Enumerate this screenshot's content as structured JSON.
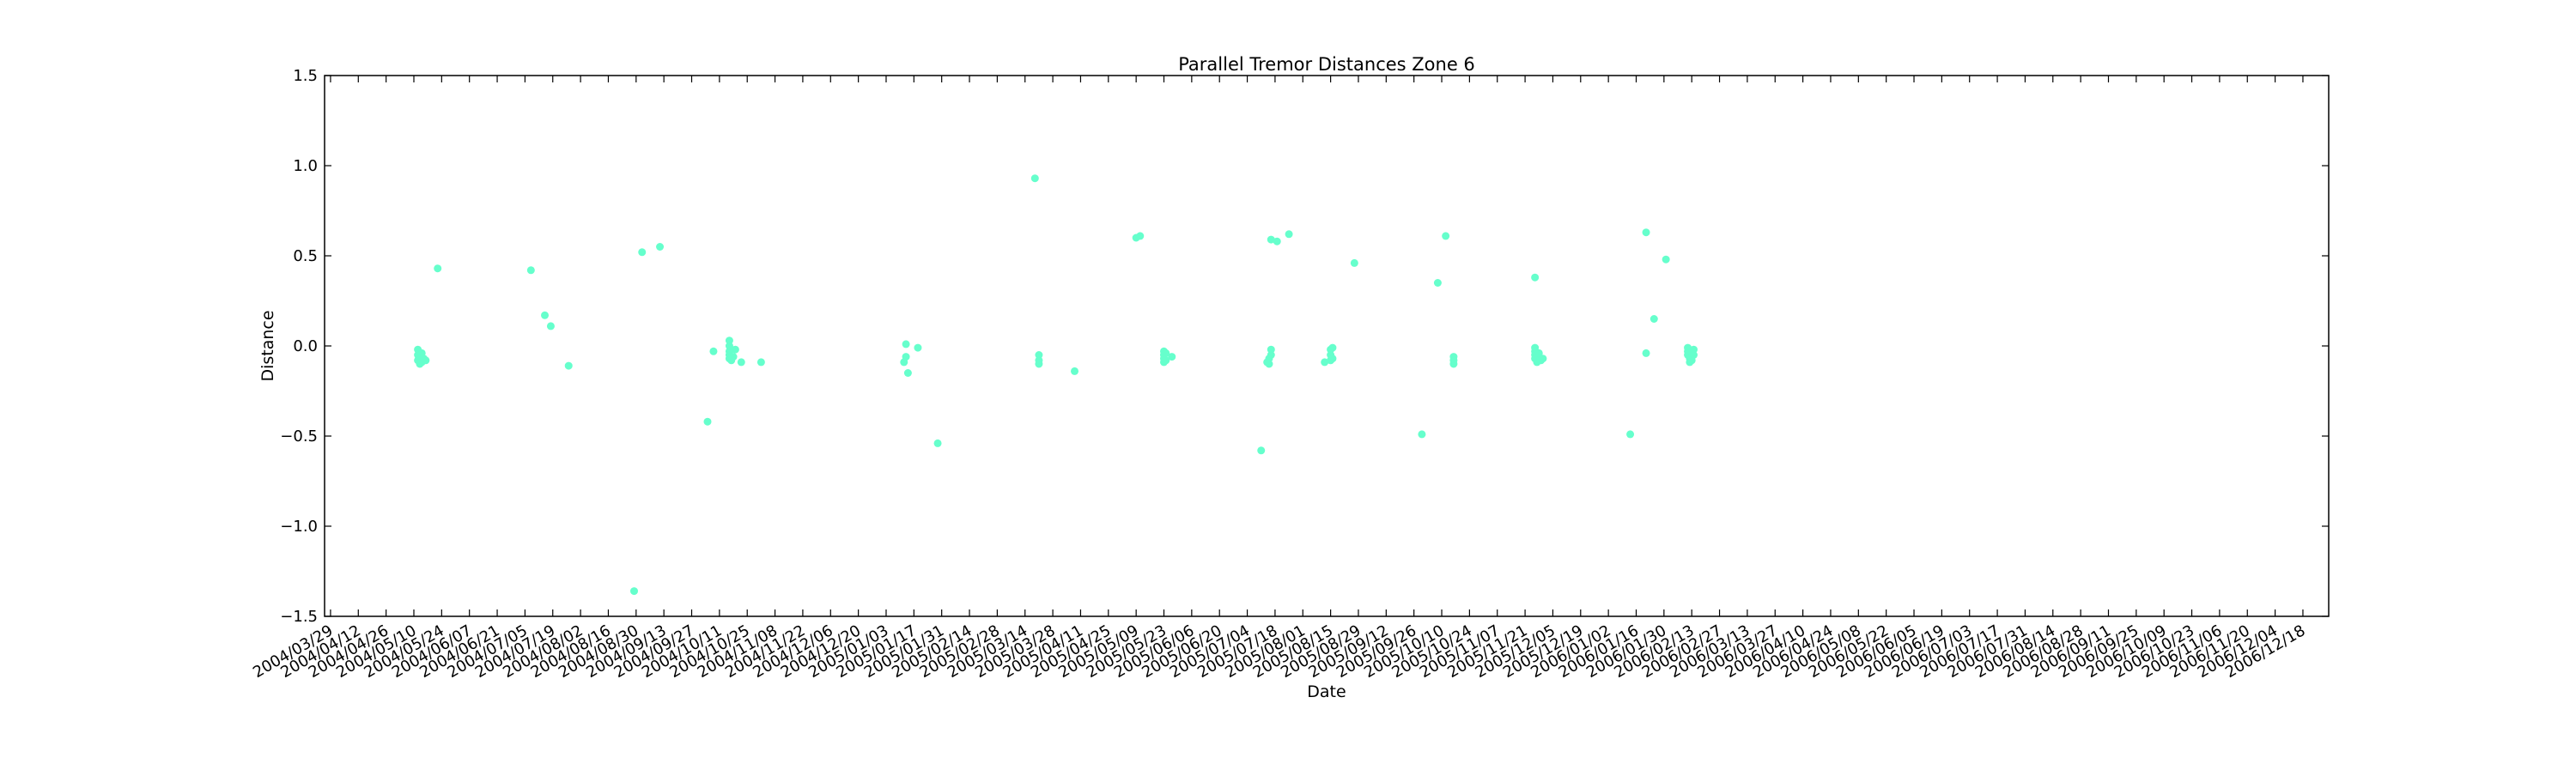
{
  "chart_data": {
    "type": "scatter",
    "title": "Parallel Tremor Distances Zone 6",
    "xlabel": "Date",
    "ylabel": "Distance",
    "xlim": [
      "2004-03-26",
      "2006-12-31"
    ],
    "ylim": [
      -1.5,
      1.5
    ],
    "grid": false,
    "legend": "none",
    "marker_color": "#66ffcc",
    "x_tick_labels": [
      "2004/03/29",
      "2004/04/12",
      "2004/04/26",
      "2004/05/10",
      "2004/05/24",
      "2004/06/07",
      "2004/06/21",
      "2004/07/05",
      "2004/07/19",
      "2004/08/02",
      "2004/08/16",
      "2004/08/30",
      "2004/09/13",
      "2004/09/27",
      "2004/10/11",
      "2004/10/25",
      "2004/11/08",
      "2004/11/22",
      "2004/12/06",
      "2004/12/20",
      "2005/01/03",
      "2005/01/17",
      "2005/01/31",
      "2005/02/14",
      "2005/02/28",
      "2005/03/14",
      "2005/03/28",
      "2005/04/11",
      "2005/04/25",
      "2005/05/09",
      "2005/05/23",
      "2005/06/06",
      "2005/06/20",
      "2005/07/04",
      "2005/07/18",
      "2005/08/01",
      "2005/08/15",
      "2005/08/29",
      "2005/09/12",
      "2005/09/26",
      "2005/10/10",
      "2005/10/24",
      "2005/11/07",
      "2005/11/21",
      "2005/12/05",
      "2005/12/19",
      "2006/01/02",
      "2006/01/16",
      "2006/01/30",
      "2006/02/13",
      "2006/02/27",
      "2006/03/13",
      "2006/03/27",
      "2006/04/10",
      "2006/04/24",
      "2006/05/08",
      "2006/05/22",
      "2006/06/05",
      "2006/06/19",
      "2006/07/03",
      "2006/07/17",
      "2006/07/31",
      "2006/08/14",
      "2006/08/28",
      "2006/09/11",
      "2006/09/25",
      "2006/10/09",
      "2006/10/23",
      "2006/11/06",
      "2006/11/20",
      "2006/12/04",
      "2006/12/18"
    ],
    "y_tick_labels": [
      "1.5",
      "1.0",
      "0.5",
      "0.0",
      "−0.5",
      "−1.0",
      "−1.5"
    ],
    "y_ticks": [
      1.5,
      1.0,
      0.5,
      0.0,
      -0.5,
      -1.0,
      -1.5
    ],
    "series": [
      {
        "points": [
          {
            "x": "2004-05-12",
            "y": -0.02
          },
          {
            "x": "2004-05-12",
            "y": -0.05
          },
          {
            "x": "2004-05-12",
            "y": -0.08
          },
          {
            "x": "2004-05-13",
            "y": -0.1
          },
          {
            "x": "2004-05-13",
            "y": -0.06
          },
          {
            "x": "2004-05-14",
            "y": -0.09
          },
          {
            "x": "2004-05-14",
            "y": -0.04
          },
          {
            "x": "2004-05-15",
            "y": -0.07
          },
          {
            "x": "2004-05-16",
            "y": -0.08
          },
          {
            "x": "2004-05-22",
            "y": 0.43
          },
          {
            "x": "2004-07-08",
            "y": 0.42
          },
          {
            "x": "2004-07-15",
            "y": 0.17
          },
          {
            "x": "2004-07-18",
            "y": 0.11
          },
          {
            "x": "2004-07-27",
            "y": -0.11
          },
          {
            "x": "2004-08-29",
            "y": -1.36
          },
          {
            "x": "2004-09-02",
            "y": 0.52
          },
          {
            "x": "2004-09-11",
            "y": 0.55
          },
          {
            "x": "2004-10-05",
            "y": -0.42
          },
          {
            "x": "2004-10-08",
            "y": -0.03
          },
          {
            "x": "2004-10-16",
            "y": 0.03
          },
          {
            "x": "2004-10-16",
            "y": 0.0
          },
          {
            "x": "2004-10-16",
            "y": -0.03
          },
          {
            "x": "2004-10-16",
            "y": -0.05
          },
          {
            "x": "2004-10-16",
            "y": -0.07
          },
          {
            "x": "2004-10-17",
            "y": -0.08
          },
          {
            "x": "2004-10-17",
            "y": -0.02
          },
          {
            "x": "2004-10-18",
            "y": -0.06
          },
          {
            "x": "2004-10-19",
            "y": -0.02
          },
          {
            "x": "2004-10-22",
            "y": -0.09
          },
          {
            "x": "2004-11-01",
            "y": -0.09
          },
          {
            "x": "2005-01-12",
            "y": -0.09
          },
          {
            "x": "2005-01-13",
            "y": -0.06
          },
          {
            "x": "2005-01-13",
            "y": 0.01
          },
          {
            "x": "2005-01-14",
            "y": -0.15
          },
          {
            "x": "2005-01-19",
            "y": -0.01
          },
          {
            "x": "2005-01-29",
            "y": -0.54
          },
          {
            "x": "2005-03-19",
            "y": 0.93
          },
          {
            "x": "2005-03-21",
            "y": -0.05
          },
          {
            "x": "2005-03-21",
            "y": -0.08
          },
          {
            "x": "2005-03-21",
            "y": -0.1
          },
          {
            "x": "2005-04-08",
            "y": -0.14
          },
          {
            "x": "2005-05-09",
            "y": 0.6
          },
          {
            "x": "2005-05-11",
            "y": 0.61
          },
          {
            "x": "2005-05-23",
            "y": -0.03
          },
          {
            "x": "2005-05-23",
            "y": -0.05
          },
          {
            "x": "2005-05-23",
            "y": -0.07
          },
          {
            "x": "2005-05-23",
            "y": -0.09
          },
          {
            "x": "2005-05-24",
            "y": -0.04
          },
          {
            "x": "2005-05-24",
            "y": -0.08
          },
          {
            "x": "2005-05-27",
            "y": -0.06
          },
          {
            "x": "2005-07-11",
            "y": -0.58
          },
          {
            "x": "2005-07-14",
            "y": -0.09
          },
          {
            "x": "2005-07-15",
            "y": -0.07
          },
          {
            "x": "2005-07-15",
            "y": -0.1
          },
          {
            "x": "2005-07-16",
            "y": -0.05
          },
          {
            "x": "2005-07-16",
            "y": -0.02
          },
          {
            "x": "2005-07-16",
            "y": 0.59
          },
          {
            "x": "2005-07-19",
            "y": 0.58
          },
          {
            "x": "2005-07-25",
            "y": 0.62
          },
          {
            "x": "2005-08-12",
            "y": -0.09
          },
          {
            "x": "2005-08-15",
            "y": -0.02
          },
          {
            "x": "2005-08-15",
            "y": -0.05
          },
          {
            "x": "2005-08-15",
            "y": -0.08
          },
          {
            "x": "2005-08-16",
            "y": -0.01
          },
          {
            "x": "2005-08-16",
            "y": -0.07
          },
          {
            "x": "2005-08-27",
            "y": 0.46
          },
          {
            "x": "2005-09-30",
            "y": -0.49
          },
          {
            "x": "2005-10-08",
            "y": 0.35
          },
          {
            "x": "2005-10-12",
            "y": 0.61
          },
          {
            "x": "2005-10-16",
            "y": -0.06
          },
          {
            "x": "2005-10-16",
            "y": -0.08
          },
          {
            "x": "2005-10-16",
            "y": -0.1
          },
          {
            "x": "2005-11-26",
            "y": 0.38
          },
          {
            "x": "2005-11-26",
            "y": -0.01
          },
          {
            "x": "2005-11-26",
            "y": -0.03
          },
          {
            "x": "2005-11-26",
            "y": -0.05
          },
          {
            "x": "2005-11-26",
            "y": -0.07
          },
          {
            "x": "2005-11-27",
            "y": -0.09
          },
          {
            "x": "2005-11-27",
            "y": -0.06
          },
          {
            "x": "2005-11-28",
            "y": -0.04
          },
          {
            "x": "2005-11-29",
            "y": -0.08
          },
          {
            "x": "2005-11-30",
            "y": -0.07
          },
          {
            "x": "2006-01-13",
            "y": -0.49
          },
          {
            "x": "2006-01-21",
            "y": 0.63
          },
          {
            "x": "2006-01-21",
            "y": -0.04
          },
          {
            "x": "2006-01-25",
            "y": 0.15
          },
          {
            "x": "2006-01-31",
            "y": 0.48
          },
          {
            "x": "2006-02-11",
            "y": -0.01
          },
          {
            "x": "2006-02-11",
            "y": -0.03
          },
          {
            "x": "2006-02-11",
            "y": -0.05
          },
          {
            "x": "2006-02-12",
            "y": -0.07
          },
          {
            "x": "2006-02-12",
            "y": -0.09
          },
          {
            "x": "2006-02-12",
            "y": -0.04
          },
          {
            "x": "2006-02-13",
            "y": -0.06
          },
          {
            "x": "2006-02-13",
            "y": -0.08
          },
          {
            "x": "2006-02-14",
            "y": -0.02
          },
          {
            "x": "2006-02-14",
            "y": -0.05
          }
        ]
      }
    ]
  }
}
